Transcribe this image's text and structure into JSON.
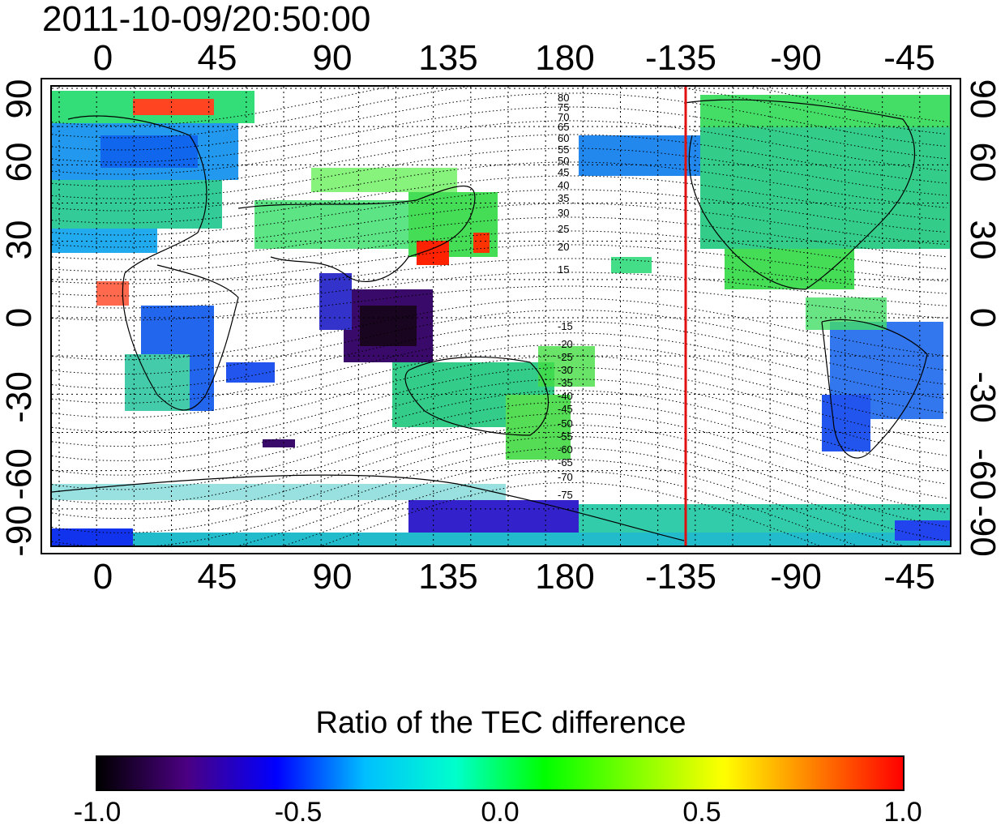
{
  "title": "2011-10-09/20:50:00",
  "lon_ticks": [
    "0",
    "45",
    "90",
    "135",
    "180",
    "-135",
    "-90",
    "-45"
  ],
  "lat_ticks_left": [
    "90",
    "60",
    "30",
    "0",
    "-30",
    "-60",
    "-90"
  ],
  "lat_ticks_right": [
    "90",
    "60",
    "30",
    "0",
    "-30",
    "-60",
    "-90"
  ],
  "contour_labels_north": [
    "80",
    "75",
    "70",
    "65",
    "60",
    "55",
    "50",
    "45",
    "40",
    "35",
    "30",
    "25",
    "20",
    "15"
  ],
  "contour_labels_south": [
    "-15",
    "-20",
    "-25",
    "-30",
    "-35",
    "-40",
    "-45",
    "-50",
    "-55",
    "-60",
    "-65",
    "-70",
    "-75"
  ],
  "colorbar": {
    "title": "Ratio of the TEC difference",
    "ticks": [
      "-1.0",
      "-0.5",
      "0.0",
      "0.5",
      "1.0"
    ],
    "min": -1.0,
    "max": 1.0
  },
  "marker_longitude": -135,
  "colors": {
    "marker": "#e01010",
    "scale": [
      "#000000",
      "#4b0082",
      "#0000ff",
      "#00c0ff",
      "#00ffcc",
      "#00ff00",
      "#80ff00",
      "#ffff00",
      "#ff8000",
      "#ff0000"
    ]
  }
}
